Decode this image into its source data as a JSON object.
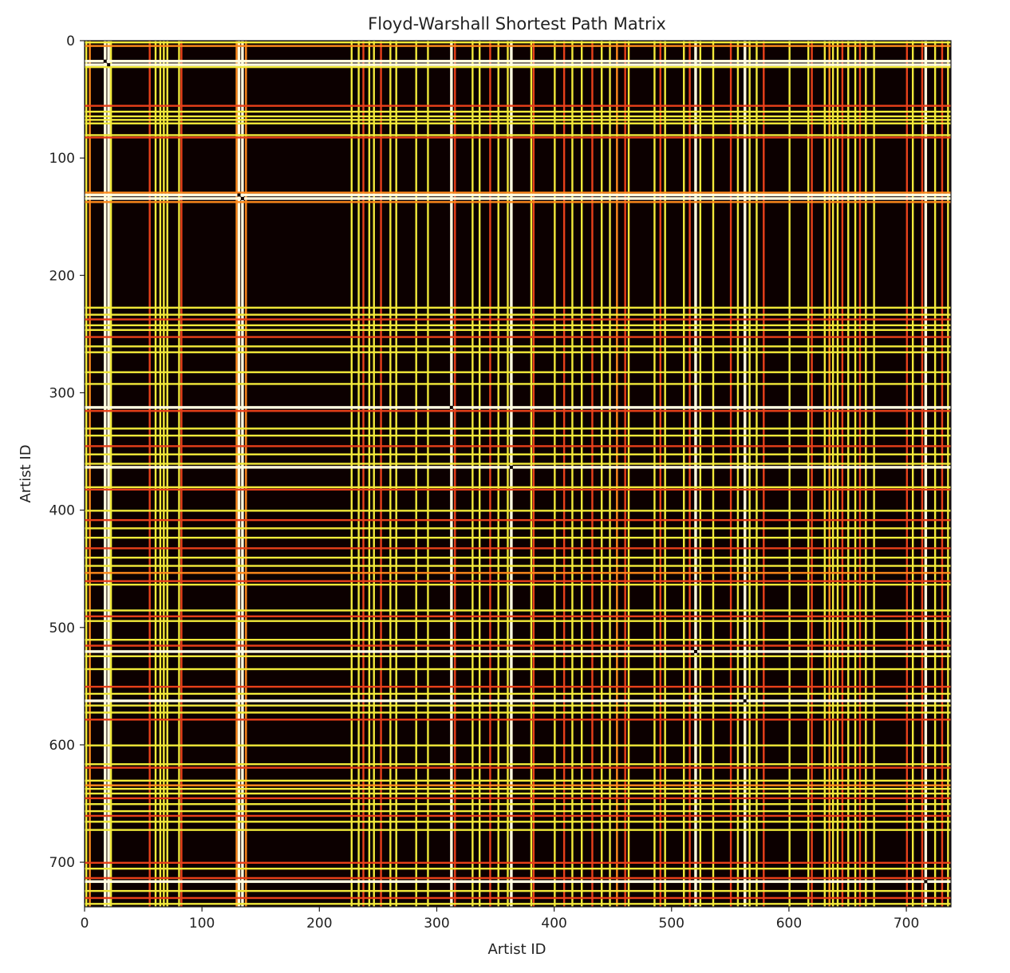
{
  "chart_data": {
    "type": "heatmap",
    "title": "Floyd-Warshall Shortest Path Matrix",
    "xlabel": "Artist ID",
    "ylabel": "Artist ID",
    "xlim": [
      0,
      738
    ],
    "ylim": [
      738,
      0
    ],
    "xticks": [
      0,
      100,
      200,
      300,
      400,
      500,
      600,
      700
    ],
    "yticks": [
      0,
      100,
      200,
      300,
      400,
      500,
      600,
      700
    ],
    "colormap": "hot",
    "colors": {
      "background": "#0c0000",
      "red": "#e8401a",
      "orange": "#ff8a1c",
      "yellow": "#f2ea3a",
      "white": "#fffbe0"
    },
    "lines": [
      {
        "id": 1,
        "c": "yellow"
      },
      {
        "id": 4,
        "c": "orange"
      },
      {
        "id": 17,
        "c": "white"
      },
      {
        "id": 20,
        "c": "white"
      },
      {
        "id": 22,
        "c": "yellow"
      },
      {
        "id": 55,
        "c": "red"
      },
      {
        "id": 60,
        "c": "yellow"
      },
      {
        "id": 64,
        "c": "yellow"
      },
      {
        "id": 67,
        "c": "yellow"
      },
      {
        "id": 70,
        "c": "yellow"
      },
      {
        "id": 80,
        "c": "yellow"
      },
      {
        "id": 82,
        "c": "red"
      },
      {
        "id": 129,
        "c": "orange"
      },
      {
        "id": 131,
        "c": "white"
      },
      {
        "id": 134,
        "c": "white"
      },
      {
        "id": 137,
        "c": "orange"
      },
      {
        "id": 227,
        "c": "yellow"
      },
      {
        "id": 233,
        "c": "yellow"
      },
      {
        "id": 237,
        "c": "red"
      },
      {
        "id": 242,
        "c": "yellow"
      },
      {
        "id": 246,
        "c": "yellow"
      },
      {
        "id": 252,
        "c": "red"
      },
      {
        "id": 260,
        "c": "yellow"
      },
      {
        "id": 265,
        "c": "yellow"
      },
      {
        "id": 282,
        "c": "yellow"
      },
      {
        "id": 292,
        "c": "yellow"
      },
      {
        "id": 312,
        "c": "white"
      },
      {
        "id": 315,
        "c": "red"
      },
      {
        "id": 330,
        "c": "yellow"
      },
      {
        "id": 336,
        "c": "yellow"
      },
      {
        "id": 345,
        "c": "red"
      },
      {
        "id": 352,
        "c": "yellow"
      },
      {
        "id": 360,
        "c": "yellow"
      },
      {
        "id": 363,
        "c": "white"
      },
      {
        "id": 380,
        "c": "yellow"
      },
      {
        "id": 382,
        "c": "red"
      },
      {
        "id": 400,
        "c": "yellow"
      },
      {
        "id": 408,
        "c": "red"
      },
      {
        "id": 415,
        "c": "yellow"
      },
      {
        "id": 423,
        "c": "yellow"
      },
      {
        "id": 432,
        "c": "red"
      },
      {
        "id": 440,
        "c": "yellow"
      },
      {
        "id": 447,
        "c": "yellow"
      },
      {
        "id": 453,
        "c": "orange"
      },
      {
        "id": 460,
        "c": "red"
      },
      {
        "id": 463,
        "c": "yellow"
      },
      {
        "id": 485,
        "c": "yellow"
      },
      {
        "id": 490,
        "c": "red"
      },
      {
        "id": 494,
        "c": "yellow"
      },
      {
        "id": 510,
        "c": "yellow"
      },
      {
        "id": 515,
        "c": "red"
      },
      {
        "id": 520,
        "c": "white"
      },
      {
        "id": 524,
        "c": "yellow"
      },
      {
        "id": 535,
        "c": "yellow"
      },
      {
        "id": 550,
        "c": "red"
      },
      {
        "id": 556,
        "c": "yellow"
      },
      {
        "id": 562,
        "c": "white"
      },
      {
        "id": 566,
        "c": "yellow"
      },
      {
        "id": 572,
        "c": "yellow"
      },
      {
        "id": 578,
        "c": "red"
      },
      {
        "id": 600,
        "c": "yellow"
      },
      {
        "id": 616,
        "c": "yellow"
      },
      {
        "id": 619,
        "c": "red"
      },
      {
        "id": 630,
        "c": "yellow"
      },
      {
        "id": 634,
        "c": "orange"
      },
      {
        "id": 637,
        "c": "yellow"
      },
      {
        "id": 641,
        "c": "yellow"
      },
      {
        "id": 645,
        "c": "red"
      },
      {
        "id": 650,
        "c": "yellow"
      },
      {
        "id": 656,
        "c": "yellow"
      },
      {
        "id": 660,
        "c": "red"
      },
      {
        "id": 665,
        "c": "yellow"
      },
      {
        "id": 672,
        "c": "yellow"
      },
      {
        "id": 700,
        "c": "red"
      },
      {
        "id": 705,
        "c": "yellow"
      },
      {
        "id": 713,
        "c": "red"
      },
      {
        "id": 716,
        "c": "white"
      },
      {
        "id": 724,
        "c": "yellow"
      },
      {
        "id": 730,
        "c": "red"
      },
      {
        "id": 735,
        "c": "yellow"
      }
    ]
  }
}
